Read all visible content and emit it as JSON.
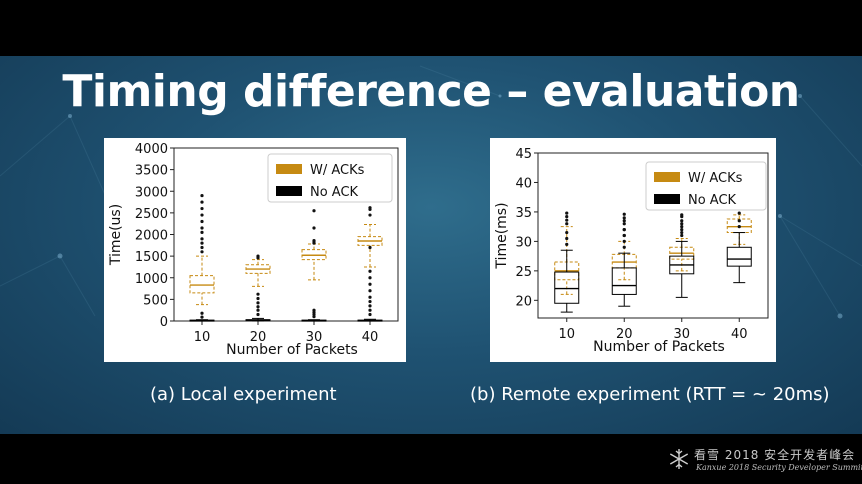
{
  "slide": {
    "title": "Timing difference – evaluation",
    "captions": [
      "(a) Local experiment",
      "(b) Remote experiment (RTT = ~ 20ms)"
    ],
    "brand": {
      "cn": "看雪 2018 安全开发者峰会",
      "en": "Kanxue 2018 Security Developer Summit"
    }
  },
  "colors": {
    "ack": "#c68a12",
    "noack": "#000000"
  },
  "chart_data": [
    {
      "type": "box",
      "xlabel": "Number of Packets",
      "ylabel": "Time(us)",
      "ylim": [
        0,
        4000
      ],
      "yticks": [
        0,
        500,
        1000,
        1500,
        2000,
        2500,
        3000,
        3500,
        4000
      ],
      "categories": [
        "10",
        "20",
        "30",
        "40"
      ],
      "legend_position": "top-right",
      "series": [
        {
          "name": "W/ ACKs",
          "style": "dashed",
          "boxes": [
            {
              "whislo": 380,
              "q1": 650,
              "med": 830,
              "q3": 1050,
              "whishi": 1500,
              "fliers": [
                1600,
                1700,
                1800,
                1900,
                2050,
                2150,
                2300,
                2450,
                2600,
                2750,
                2900
              ]
            },
            {
              "whislo": 800,
              "q1": 1100,
              "med": 1200,
              "q3": 1300,
              "whishi": 1420,
              "fliers": [
                1460,
                1500
              ]
            },
            {
              "whislo": 950,
              "q1": 1420,
              "med": 1520,
              "q3": 1650,
              "whishi": 1780,
              "fliers": [
                1800,
                1830,
                1860,
                2150,
                2550
              ]
            },
            {
              "whislo": 1250,
              "q1": 1750,
              "med": 1850,
              "q3": 1950,
              "whishi": 2230,
              "fliers": [
                2450,
                2580,
                2620
              ]
            }
          ]
        },
        {
          "name": "No ACK",
          "style": "solid",
          "boxes": [
            {
              "whislo": 0,
              "q1": 5,
              "med": 10,
              "q3": 20,
              "whishi": 30,
              "fliers": [
                90,
                180
              ]
            },
            {
              "whislo": 0,
              "q1": 10,
              "med": 20,
              "q3": 30,
              "whishi": 60,
              "fliers": [
                150,
                250,
                330,
                420,
                520,
                620
              ]
            },
            {
              "whislo": 0,
              "q1": 5,
              "med": 10,
              "q3": 20,
              "whishi": 30,
              "fliers": [
                100,
                150,
                200,
                250
              ]
            },
            {
              "whislo": 0,
              "q1": 5,
              "med": 10,
              "q3": 20,
              "whishi": 40,
              "fliers": [
                150,
                250,
                350,
                450,
                550,
                700,
                850,
                1000,
                1150,
                1700
              ]
            }
          ]
        }
      ]
    },
    {
      "type": "box",
      "xlabel": "Number of Packets",
      "ylabel": "Time(ms)",
      "ylim": [
        17,
        45
      ],
      "yticks": [
        20,
        25,
        30,
        35,
        40,
        45
      ],
      "categories": [
        "10",
        "20",
        "30",
        "40"
      ],
      "legend_position": "top-right",
      "series": [
        {
          "name": "W/ ACKs",
          "style": "dashed",
          "boxes": [
            {
              "whislo": 21,
              "q1": 23.5,
              "med": 25,
              "q3": 26.5,
              "whishi": 32.5,
              "fliers": [
                33,
                33.6,
                34.2,
                34.8
              ]
            },
            {
              "whislo": 23.5,
              "q1": 25.5,
              "med": 26.5,
              "q3": 27.8,
              "whishi": 30,
              "fliers": [
                31,
                32,
                33,
                34,
                34.6
              ]
            },
            {
              "whislo": 25,
              "q1": 27,
              "med": 28,
              "q3": 29,
              "whishi": 30.5,
              "fliers": [
                31.5,
                32.5,
                33.5,
                34.2
              ]
            },
            {
              "whislo": 29.5,
              "q1": 31.5,
              "med": 32.5,
              "q3": 33.8,
              "whishi": 34.5,
              "fliers": [
                34.8
              ]
            }
          ]
        },
        {
          "name": "No ACK",
          "style": "solid",
          "boxes": [
            {
              "whislo": 18,
              "q1": 19.5,
              "med": 22,
              "q3": 24.8,
              "whishi": 28.5,
              "fliers": [
                29.5,
                30.5,
                31.5
              ]
            },
            {
              "whislo": 19,
              "q1": 21,
              "med": 22.5,
              "q3": 25.5,
              "whishi": 28,
              "fliers": [
                29,
                30,
                31,
                32,
                33.5
              ]
            },
            {
              "whislo": 20.5,
              "q1": 24.5,
              "med": 26,
              "q3": 27.5,
              "whishi": 30,
              "fliers": [
                31,
                32,
                33,
                34.5
              ]
            },
            {
              "whislo": 23,
              "q1": 25.8,
              "med": 27,
              "q3": 29,
              "whishi": 31.5,
              "fliers": [
                32.5,
                33.5
              ]
            }
          ]
        }
      ]
    }
  ]
}
